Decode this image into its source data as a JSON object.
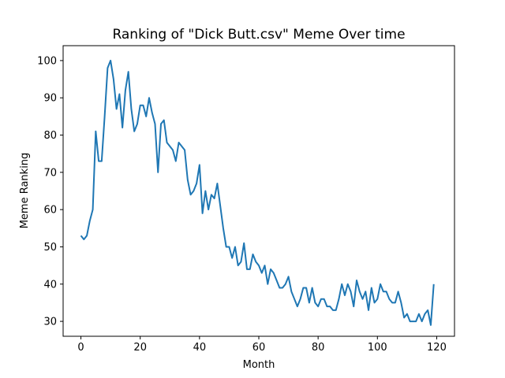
{
  "chart_data": {
    "type": "line",
    "title": "Ranking of \"Dick Butt.csv\" Meme Over time",
    "xlabel": "Month",
    "ylabel": "Meme Ranking",
    "xlim": [
      -6,
      126
    ],
    "ylim": [
      26,
      104
    ],
    "xticks": [
      0,
      20,
      40,
      60,
      80,
      100,
      120
    ],
    "xtick_labels": [
      "0",
      "20",
      "40",
      "60",
      "80",
      "100",
      "120"
    ],
    "yticks": [
      30,
      40,
      50,
      60,
      70,
      80,
      90,
      100
    ],
    "ytick_labels": [
      "30",
      "40",
      "50",
      "60",
      "70",
      "80",
      "90",
      "100"
    ],
    "grid": false,
    "legend": "none",
    "series": [
      {
        "color": "#1f77b4",
        "x": [
          0,
          1,
          2,
          3,
          4,
          5,
          6,
          7,
          8,
          9,
          10,
          11,
          12,
          13,
          14,
          15,
          16,
          17,
          18,
          19,
          20,
          21,
          22,
          23,
          24,
          25,
          26,
          27,
          28,
          29,
          30,
          31,
          32,
          33,
          34,
          35,
          36,
          37,
          38,
          39,
          40,
          41,
          42,
          43,
          44,
          45,
          46,
          47,
          48,
          49,
          50,
          51,
          52,
          53,
          54,
          55,
          56,
          57,
          58,
          59,
          60,
          61,
          62,
          63,
          64,
          65,
          66,
          67,
          68,
          69,
          70,
          71,
          72,
          73,
          74,
          75,
          76,
          77,
          78,
          79,
          80,
          81,
          82,
          83,
          84,
          85,
          86,
          87,
          88,
          89,
          90,
          91,
          92,
          93,
          94,
          95,
          96,
          97,
          98,
          99,
          100,
          101,
          102,
          103,
          104,
          105,
          106,
          107,
          108,
          109,
          110,
          111,
          112,
          113,
          114,
          115,
          116,
          117,
          118,
          119
        ],
        "y": [
          53,
          52,
          53,
          57,
          60,
          81,
          73,
          73,
          85,
          98,
          100,
          95,
          87,
          91,
          82,
          92,
          97,
          87,
          81,
          83,
          88,
          88,
          85,
          90,
          86,
          83,
          70,
          83,
          84,
          78,
          77,
          76,
          73,
          78,
          77,
          76,
          68,
          64,
          65,
          67,
          72,
          59,
          65,
          60,
          64,
          63,
          67,
          61,
          55,
          50,
          50,
          47,
          50,
          45,
          46,
          51,
          44,
          44,
          48,
          46,
          45,
          43,
          45,
          40,
          44,
          43,
          41,
          39,
          39,
          40,
          42,
          38,
          36,
          34,
          36,
          39,
          39,
          35,
          39,
          35,
          34,
          36,
          36,
          34,
          34,
          33,
          33,
          36,
          40,
          37,
          40,
          38,
          34,
          41,
          38,
          36,
          38,
          33,
          39,
          35,
          36,
          40,
          38,
          38,
          36,
          35,
          35,
          38,
          35,
          31,
          32,
          30,
          30,
          30,
          32,
          30,
          32,
          33,
          29,
          40
        ]
      }
    ]
  }
}
